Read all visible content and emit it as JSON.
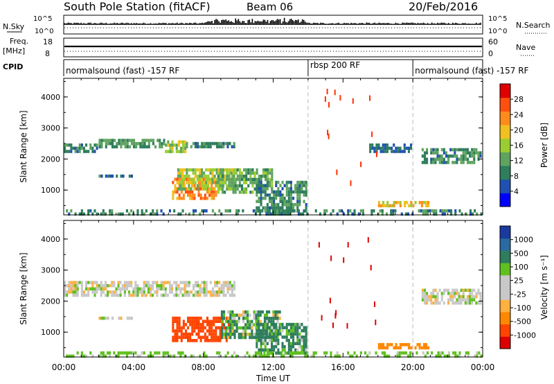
{
  "header": {
    "title": "South Pole Station (fitACF)",
    "beam": "Beam 06",
    "date": "20/Feb/2016"
  },
  "strip_labels": {
    "nsky": "N.Sky",
    "nsky_ticks": [
      "10^5",
      "10^0"
    ],
    "nsearch": "N.Search",
    "nsearch_ticks": [
      "10^5",
      "10^0"
    ],
    "freq_line1": "Freq.",
    "freq_line2": "[MHz]",
    "freq_ticks": [
      "18",
      "8"
    ],
    "nave": "Nave",
    "nave_ticks": [
      "60",
      "0"
    ],
    "cpid": "CPID"
  },
  "cpid_segments": [
    {
      "label": "normalsound (fast) -157 RF",
      "start": 0,
      "end": 14
    },
    {
      "label": "rbsp 200 RF",
      "start": 14,
      "end": 20
    },
    {
      "label": "normalsound (fast) -157 RF",
      "start": 20,
      "end": 24
    }
  ],
  "colors": {
    "power_scale": [
      "#0000ff",
      "#2050b0",
      "#2e7d5c",
      "#5fa35f",
      "#9acd32",
      "#f0c020",
      "#ff8c1a",
      "#ff5010",
      "#e00000"
    ],
    "velocity_scale": [
      "#dd0000",
      "#ff4400",
      "#ff8800",
      "#ffb040",
      "#c8c8c8",
      "#c8c8c8",
      "#60c020",
      "#2e7d5c",
      "#2a6aa0",
      "#1a3aa0"
    ]
  },
  "chart_data": [
    {
      "type": "heatmap",
      "name": "power",
      "xlabel": "",
      "ylabel": "Slant Range [km]",
      "xlim": [
        0,
        24
      ],
      "ylim": [
        200,
        4600
      ],
      "yticks": [
        1000,
        2000,
        3000,
        4000
      ],
      "colorbar_label": "Power [dB]",
      "colorbar_ticks": [
        "4",
        "8",
        "12",
        "16",
        "20",
        "24",
        "28"
      ],
      "colorbar_range": [
        0,
        32
      ],
      "echo_bands": [
        {
          "t0": 0.0,
          "t1": 2.0,
          "r0": 2200,
          "r1": 2500,
          "value": 9
        },
        {
          "t0": 2.0,
          "t1": 5.8,
          "r0": 2300,
          "r1": 2650,
          "value": 10
        },
        {
          "t0": 5.8,
          "t1": 7.0,
          "r0": 2150,
          "r1": 2600,
          "value": 15
        },
        {
          "t0": 7.0,
          "t1": 9.8,
          "r0": 2300,
          "r1": 2550,
          "value": 9
        },
        {
          "t0": 6.2,
          "t1": 8.8,
          "r0": 700,
          "r1": 1400,
          "value": 25
        },
        {
          "t0": 6.5,
          "t1": 10.0,
          "r0": 1000,
          "r1": 1700,
          "value": 16
        },
        {
          "t0": 8.8,
          "t1": 12.0,
          "r0": 900,
          "r1": 1700,
          "value": 12
        },
        {
          "t0": 2.0,
          "t1": 4.0,
          "r0": 1350,
          "r1": 1500,
          "value": 7
        },
        {
          "t0": 11.0,
          "t1": 14.0,
          "r0": 300,
          "r1": 1300,
          "value": 9
        },
        {
          "t0": 18.0,
          "t1": 21.0,
          "r0": 450,
          "r1": 650,
          "value": 20
        },
        {
          "t0": 20.5,
          "t1": 24.0,
          "r0": 1800,
          "r1": 2350,
          "value": 9
        },
        {
          "t0": 17.5,
          "t1": 20.0,
          "r0": 2200,
          "r1": 2500,
          "value": 6
        },
        {
          "t0": 0.0,
          "t1": 24.0,
          "r0": 220,
          "r1": 380,
          "value": 8
        }
      ]
    },
    {
      "type": "heatmap",
      "name": "velocity",
      "xlabel": "Time UT",
      "ylabel": "Slant Range [km]",
      "xlim": [
        0,
        24
      ],
      "ylim": [
        200,
        4600
      ],
      "xticks": [
        "00:00",
        "04:00",
        "08:00",
        "12:00",
        "16:00",
        "20:00",
        "00:00"
      ],
      "yticks": [
        1000,
        2000,
        3000,
        4000
      ],
      "colorbar_label": "Velocity [m s⁻¹]",
      "colorbar_ticks": [
        "-1000",
        "-500",
        "-100",
        "-25",
        "25",
        "100",
        "500",
        "1000"
      ],
      "echo_bands": [
        {
          "t0": 0.0,
          "t1": 9.8,
          "r0": 2150,
          "r1": 2650,
          "value": 0
        },
        {
          "t0": 6.2,
          "t1": 9.5,
          "r0": 700,
          "r1": 1500,
          "value": -700
        },
        {
          "t0": 9.0,
          "t1": 12.5,
          "r0": 800,
          "r1": 1700,
          "value": 150
        },
        {
          "t0": 2.0,
          "t1": 4.0,
          "r0": 1350,
          "r1": 1500,
          "value": 0
        },
        {
          "t0": 11.0,
          "t1": 14.0,
          "r0": 300,
          "r1": 1300,
          "value": 200
        },
        {
          "t0": 18.0,
          "t1": 21.0,
          "r0": 450,
          "r1": 650,
          "value": -300
        },
        {
          "t0": 20.5,
          "t1": 24.0,
          "r0": 1900,
          "r1": 2400,
          "value": 0
        },
        {
          "t0": 0.0,
          "t1": 24.0,
          "r0": 220,
          "r1": 380,
          "value": 50
        }
      ]
    }
  ]
}
